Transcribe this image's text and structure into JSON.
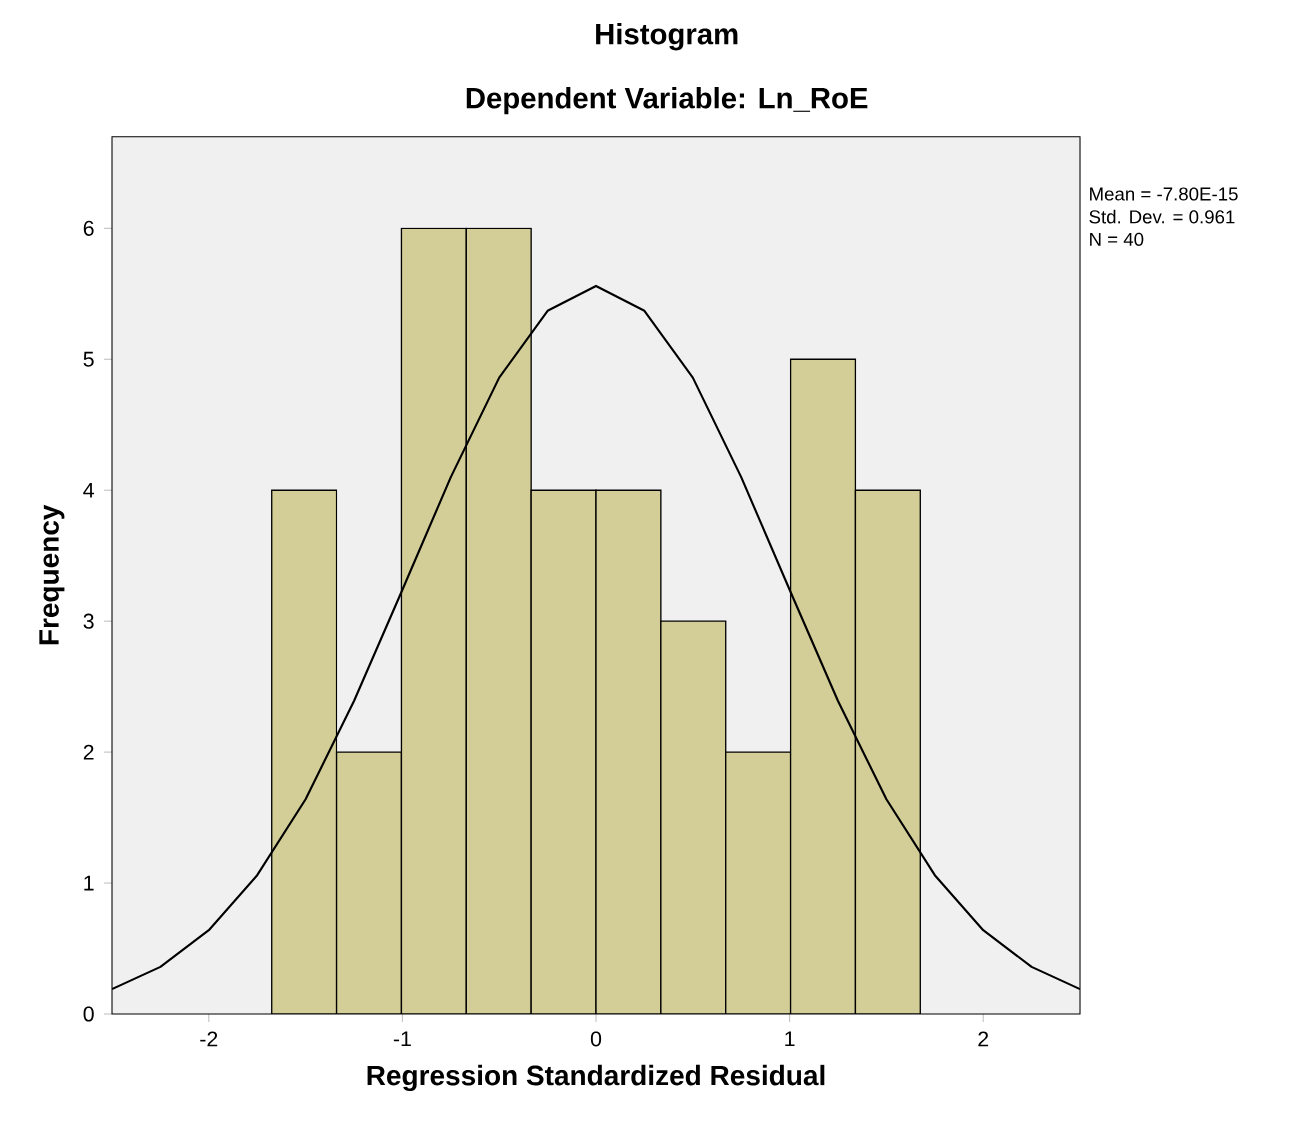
{
  "chart_data": {
    "type": "histogram",
    "title": "Histogram",
    "subtitle": "Dependent Variable: Ln_RoE",
    "xlabel": "Regression Standardized Residual",
    "ylabel": "Frequency",
    "bins": [
      -1.675,
      -1.34,
      -1.005,
      -0.67,
      -0.335,
      0,
      0.335,
      0.67,
      1.005,
      1.34,
      1.675
    ],
    "values": [
      4,
      2,
      6,
      6,
      4,
      4,
      3,
      2,
      5,
      4
    ],
    "color": "#d3ce97",
    "series": [
      {
        "type": "line",
        "color": "#000000",
        "x": [
          -2.5,
          -2.25,
          -2,
          -1.75,
          -1.5,
          -1.25,
          -1,
          -0.75,
          -0.5,
          -0.25,
          0,
          0.25,
          0.5,
          0.75,
          1,
          1.25,
          1.5,
          1.75,
          2,
          2.25,
          2.5
        ],
        "values": [
          0.19,
          0.36,
          0.64,
          1.06,
          1.64,
          2.39,
          3.24,
          4.1,
          4.86,
          5.37,
          5.56,
          5.37,
          4.86,
          4.1,
          3.24,
          2.39,
          1.64,
          1.06,
          0.64,
          0.36,
          0.19
        ]
      }
    ],
    "xlim": [
      -2.5,
      2.5
    ],
    "ylim": [
      0,
      6.7
    ],
    "xticks": [
      -2,
      -1,
      0,
      1,
      2
    ],
    "yticks": [
      0,
      1,
      2,
      3,
      4,
      5,
      6
    ],
    "grid": false,
    "annotations": [
      "Mean = -7.80E-15",
      "Std. Dev. = 0.961",
      "N = 40"
    ]
  }
}
